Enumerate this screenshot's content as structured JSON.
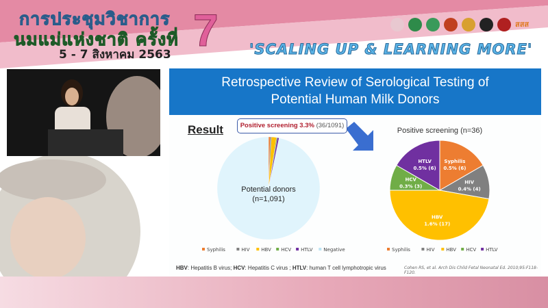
{
  "banner": {
    "line1": "การประชุมวิชาการ",
    "line2": "นมแม่แห่งชาติ ครั้งที่",
    "number": "7",
    "date": "5 - 7 สิงหาคม 2563",
    "slogan": "'SCALING UP & LEARNING MORE'",
    "logo_text": "สสส"
  },
  "slide": {
    "title_line1": "Retrospective Review of Serological Testing of",
    "title_line2": "Potential Human Milk Donors",
    "result_label": "Result",
    "callout_bold": "Positive screening 3.3%",
    "callout_rest": "(36/1091)",
    "footnote": {
      "hbv": "HBV",
      "hbv_desc": ": Hepatitis B virus; ",
      "hcv": "HCV",
      "hcv_desc": ": Hepatitis C virus ; ",
      "htlv": "HTLV",
      "htlv_desc": ": human T cell lymphotropic virus"
    },
    "citation": "Cohen RS, et al. Arch Dis Child Fetal Neonatal Ed. 2010;95:F118-F120."
  },
  "chart_data": [
    {
      "type": "pie",
      "center_label": "Potential donors",
      "center_label2": "(n=1,091)",
      "categories": [
        "Syphilis",
        "HIV",
        "HBV",
        "HCV",
        "HTLV",
        "Negative"
      ],
      "values": [
        6,
        4,
        17,
        3,
        6,
        1055
      ],
      "colors": [
        "#ed7d31",
        "#808080",
        "#ffc000",
        "#70ad47",
        "#7030a0",
        "#e0f4fc"
      ],
      "legend_placement": "bottom"
    },
    {
      "type": "pie",
      "title": "Positive screening (n=36)",
      "categories": [
        "Syphilis",
        "HIV",
        "HBV",
        "HCV",
        "HTLV"
      ],
      "values": [
        6,
        4,
        17,
        3,
        6
      ],
      "labels": [
        "0.5% (6)",
        "0.4% (4)",
        "1.6% (17)",
        "0.3% (3)",
        "0.5% (6)"
      ],
      "colors": [
        "#ed7d31",
        "#808080",
        "#ffc000",
        "#70ad47",
        "#7030a0"
      ],
      "legend_placement": "bottom"
    }
  ]
}
